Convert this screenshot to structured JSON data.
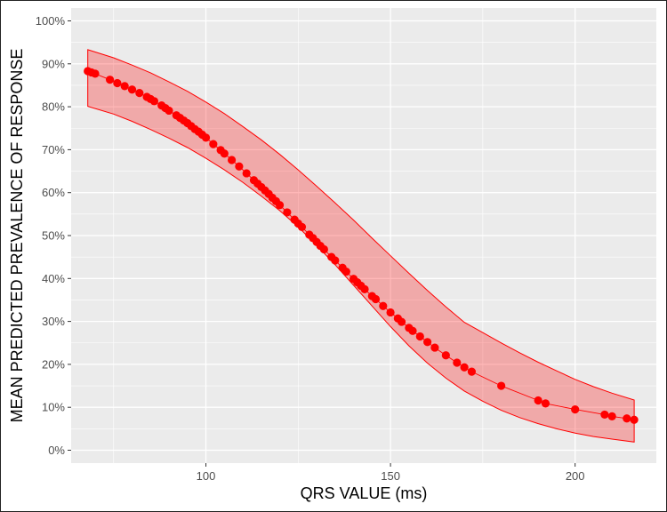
{
  "chart_data": {
    "type": "scatter",
    "title": "",
    "xlabel": "QRS VALUE (ms)",
    "ylabel": "MEAN PREDICTED PREVALENCE OF RESPONSE",
    "xlim": [
      63.5,
      222
    ],
    "ylim": [
      -3,
      103
    ],
    "x_ticks": [
      100,
      150,
      200
    ],
    "x_tick_labels": [
      "100",
      "150",
      "200"
    ],
    "y_ticks": [
      0,
      10,
      20,
      30,
      40,
      50,
      60,
      70,
      80,
      90,
      100
    ],
    "y_tick_labels": [
      "0%",
      "10%",
      "20%",
      "30%",
      "40%",
      "50%",
      "60%",
      "70%",
      "80%",
      "90%",
      "100%"
    ],
    "grid": true,
    "legend": "none",
    "colors": {
      "panel": "#ebebeb",
      "grid_major": "#ffffff",
      "point": "#ff0000",
      "line": "#ff0000",
      "band_fill": "#ff0000",
      "band_opacity": 0.28
    },
    "series": [
      {
        "points": [
          [
            68,
            88.3
          ],
          [
            69,
            88.0
          ],
          [
            70,
            87.7
          ],
          [
            74,
            86.3
          ],
          [
            76,
            85.5
          ],
          [
            78,
            84.8
          ],
          [
            80,
            84.0
          ],
          [
            82,
            83.2
          ],
          [
            84,
            82.3
          ],
          [
            85,
            81.8
          ],
          [
            86,
            81.3
          ],
          [
            88,
            80.3
          ],
          [
            89,
            79.7
          ],
          [
            90,
            79.1
          ],
          [
            92,
            78.0
          ],
          [
            93,
            77.4
          ],
          [
            94,
            76.8
          ],
          [
            95,
            76.2
          ],
          [
            96,
            75.5
          ],
          [
            97,
            74.8
          ],
          [
            98,
            74.2
          ],
          [
            99,
            73.5
          ],
          [
            100,
            72.8
          ],
          [
            102,
            71.3
          ],
          [
            104,
            69.9
          ],
          [
            105,
            69.1
          ],
          [
            107,
            67.6
          ],
          [
            109,
            66.1
          ],
          [
            111,
            64.5
          ],
          [
            113,
            62.9
          ],
          [
            114,
            62.1
          ],
          [
            115,
            61.3
          ],
          [
            116,
            60.5
          ],
          [
            117,
            59.7
          ],
          [
            118,
            58.8
          ],
          [
            119,
            58.0
          ],
          [
            120,
            57.1
          ],
          [
            122,
            55.4
          ],
          [
            124,
            53.7
          ],
          [
            125,
            52.8
          ],
          [
            126,
            52.0
          ],
          [
            128,
            50.2
          ],
          [
            129,
            49.4
          ],
          [
            130,
            48.5
          ],
          [
            131,
            47.6
          ],
          [
            132,
            46.8
          ],
          [
            134,
            45.0
          ],
          [
            135,
            44.2
          ],
          [
            137,
            42.5
          ],
          [
            138,
            41.6
          ],
          [
            140,
            39.9
          ],
          [
            141,
            39.1
          ],
          [
            142,
            38.3
          ],
          [
            143,
            37.5
          ],
          [
            145,
            35.9
          ],
          [
            146,
            35.2
          ],
          [
            148,
            33.6
          ],
          [
            150,
            32.1
          ],
          [
            152,
            30.7
          ],
          [
            153,
            29.9
          ],
          [
            155,
            28.5
          ],
          [
            156,
            27.8
          ],
          [
            158,
            26.5
          ],
          [
            160,
            25.2
          ],
          [
            162,
            23.9
          ],
          [
            165,
            22.1
          ],
          [
            168,
            20.4
          ],
          [
            170,
            19.3
          ],
          [
            172,
            18.3
          ],
          [
            180,
            15.0
          ],
          [
            190,
            11.6
          ],
          [
            192,
            10.9
          ],
          [
            200,
            9.5
          ],
          [
            208,
            8.3
          ],
          [
            210,
            7.9
          ],
          [
            214,
            7.4
          ],
          [
            216,
            7.1
          ]
        ],
        "band_x": [
          68,
          75,
          80,
          85,
          90,
          95,
          100,
          105,
          110,
          115,
          120,
          125,
          130,
          135,
          140,
          145,
          150,
          155,
          160,
          165,
          170,
          175,
          180,
          185,
          190,
          195,
          200,
          205,
          210,
          216
        ],
        "band_upper": [
          93.3,
          91.4,
          89.7,
          87.9,
          85.8,
          83.6,
          81.1,
          78.4,
          75.4,
          72.3,
          68.9,
          65.3,
          61.5,
          57.6,
          53.6,
          49.4,
          45.3,
          41.2,
          37.2,
          33.4,
          29.8,
          27.4,
          25.0,
          22.7,
          20.5,
          18.5,
          16.5,
          14.8,
          13.3,
          11.7
        ],
        "band_lower": [
          80.1,
          78.3,
          76.6,
          74.7,
          72.7,
          70.5,
          68.0,
          65.3,
          62.4,
          59.2,
          55.8,
          52.0,
          47.7,
          43.2,
          38.4,
          33.6,
          28.8,
          24.3,
          20.3,
          16.8,
          13.8,
          11.4,
          9.3,
          7.6,
          6.2,
          5.0,
          4.0,
          3.2,
          2.6,
          1.9
        ]
      }
    ]
  }
}
